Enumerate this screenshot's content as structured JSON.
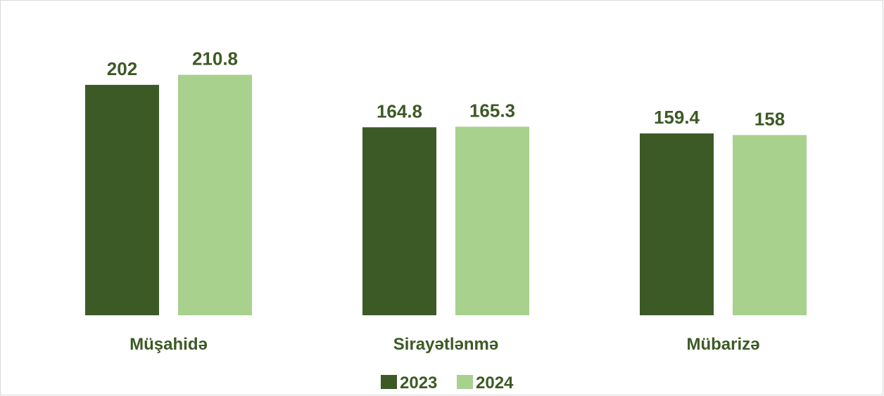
{
  "chart_data": {
    "type": "bar",
    "categories": [
      "Müşahidə",
      "Sirayətlənmə",
      "Mübarizə"
    ],
    "series": [
      {
        "name": "2023",
        "values": [
          202,
          164.8,
          159.4
        ],
        "color": "#3c5a25"
      },
      {
        "name": "2024",
        "values": [
          210.8,
          165.3,
          158
        ],
        "color": "#a8d18d"
      }
    ],
    "title": "",
    "xlabel": "",
    "ylabel": "",
    "ylim": [
      0,
      230
    ],
    "grid": false,
    "legend": "bottom-center",
    "data_labels": true,
    "label_color": "#3c5a25",
    "category_label_color": "#3c5a25"
  }
}
